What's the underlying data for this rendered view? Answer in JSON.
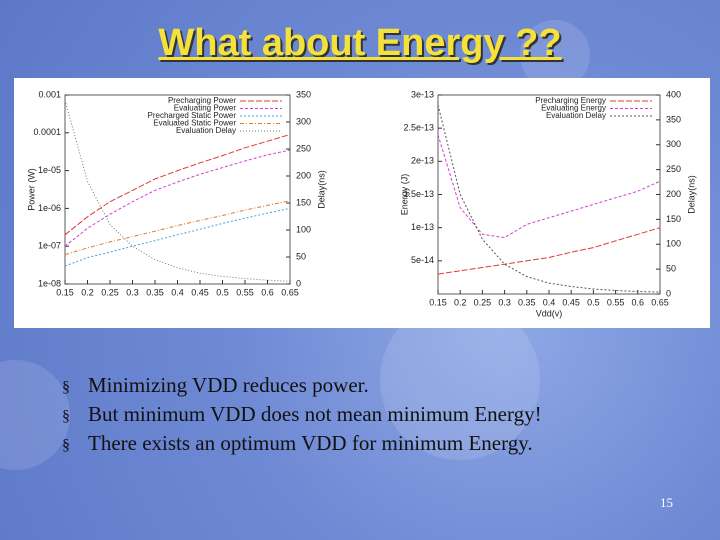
{
  "slide": {
    "title": "What about Energy ??",
    "bullets": [
      "Minimizing VDD reduces power.",
      "But minimum VDD does not mean minimum Energy!",
      "There exists an optimum VDD for minimum Energy."
    ],
    "page_number": "15"
  },
  "chart_data": [
    {
      "type": "line",
      "y_label": "Power (W)",
      "y2_label": "Delay(ns)",
      "log_y": true,
      "x": [
        0.15,
        0.2,
        0.25,
        0.3,
        0.35,
        0.4,
        0.45,
        0.5,
        0.55,
        0.6,
        0.65
      ],
      "xlim": [
        0.15,
        0.65
      ],
      "xticks": [
        0.15,
        0.2,
        0.25,
        0.3,
        0.35,
        0.4,
        0.45,
        0.5,
        0.55,
        0.6,
        0.65
      ],
      "ylim": [
        1e-08,
        0.001
      ],
      "yticks": [
        {
          "value": 1e-08,
          "label": "1e-08"
        },
        {
          "value": 1e-07,
          "label": "1e-07"
        },
        {
          "value": 1e-06,
          "label": "1e-06"
        },
        {
          "value": 1e-05,
          "label": "1e-05"
        },
        0.0001,
        0.001
      ],
      "y2lim": [
        0,
        350
      ],
      "y2ticks": [
        0,
        50,
        100,
        150,
        200,
        250,
        300,
        350
      ],
      "series": [
        {
          "name": "Precharging Power",
          "color": "#e03a3a",
          "values": [
            2e-07,
            6e-07,
            1.5e-06,
            3e-06,
            6e-06,
            1e-05,
            1.6e-05,
            2.5e-05,
            4e-05,
            6e-05,
            9e-05
          ]
        },
        {
          "name": "Evaluating Power",
          "color": "#d040d0",
          "values": [
            1e-07,
            3e-07,
            7e-07,
            1.5e-06,
            3e-06,
            5e-06,
            8e-06,
            1.2e-05,
            1.8e-05,
            2.6e-05,
            3.5e-05
          ]
        },
        {
          "name": "Precharged Static Power",
          "color": "#4aa0d8",
          "values": [
            3e-08,
            5e-08,
            7e-08,
            1e-07,
            1.4e-07,
            2e-07,
            2.8e-07,
            4e-07,
            5.5e-07,
            7.5e-07,
            1e-06
          ]
        },
        {
          "name": "Evaluated Static Power",
          "color": "#e07a30",
          "values": [
            6e-08,
            9e-08,
            1.3e-07,
            1.8e-07,
            2.5e-07,
            3.5e-07,
            4.8e-07,
            6.5e-07,
            9e-07,
            1.2e-06,
            1.6e-06
          ]
        },
        {
          "name": "Evaluation Delay",
          "color": "#777777",
          "axis": "y2",
          "values": [
            340,
            190,
            110,
            70,
            45,
            30,
            20,
            14,
            10,
            7,
            5
          ]
        }
      ]
    },
    {
      "type": "line",
      "x_label": "Vdd(v)",
      "y_label": "Energy (J)",
      "y2_label": "Delay(ns)",
      "x": [
        0.15,
        0.2,
        0.25,
        0.3,
        0.35,
        0.4,
        0.45,
        0.5,
        0.55,
        0.6,
        0.65
      ],
      "xlim": [
        0.15,
        0.65
      ],
      "xticks": [
        0.15,
        0.2,
        0.25,
        0.3,
        0.35,
        0.4,
        0.45,
        0.5,
        0.55,
        0.6,
        0.65
      ],
      "ylim": [
        0,
        3e-13
      ],
      "yticks": [
        {
          "value": 5e-14,
          "label": "5e-14"
        },
        {
          "value": 1e-13,
          "label": "1e-13"
        },
        {
          "value": 1.5e-13,
          "label": "1.5e-13"
        },
        {
          "value": 2e-13,
          "label": "2e-13"
        },
        {
          "value": 2.5e-13,
          "label": "2.5e-13"
        },
        {
          "value": 3e-13,
          "label": "3e-13"
        }
      ],
      "y2lim": [
        0,
        400
      ],
      "y2ticks": [
        0,
        50,
        100,
        150,
        200,
        250,
        300,
        350,
        400
      ],
      "series": [
        {
          "name": "Precharging Energy",
          "color": "#e03a3a",
          "values": [
            3e-14,
            3.5e-14,
            4e-14,
            4.5e-14,
            5e-14,
            5.5e-14,
            6.3e-14,
            7e-14,
            8e-14,
            9e-14,
            1e-13
          ]
        },
        {
          "name": "Evaluating Energy",
          "color": "#d040d0",
          "values": [
            2.4e-13,
            1.3e-13,
            9e-14,
            8.5e-14,
            1.05e-13,
            1.15e-13,
            1.25e-13,
            1.35e-13,
            1.45e-13,
            1.55e-13,
            1.7e-13
          ]
        },
        {
          "name": "Evaluation Delay",
          "color": "#555555",
          "axis": "y2",
          "values": [
            380,
            200,
            110,
            60,
            35,
            22,
            15,
            10,
            7,
            5,
            4
          ]
        }
      ]
    }
  ]
}
